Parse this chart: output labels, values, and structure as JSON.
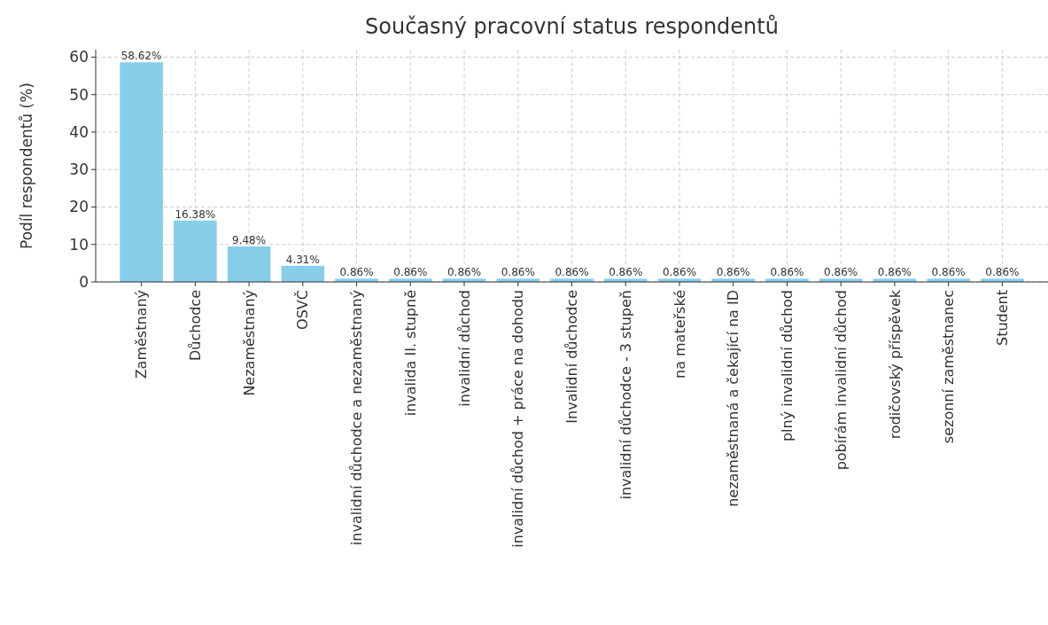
{
  "chart_data": {
    "type": "bar",
    "title": "Současný pracovní status respondentů",
    "ylabel": "Podíl respondentů (%)",
    "categories": [
      "Zaměstnaný",
      "Důchodce",
      "Nezaměstnaný",
      "OSVČ",
      "invalidní důchodce a nezaměstnaný",
      "invalida II. stupně",
      "invalidní důchod",
      "invalidní důchod + práce na dohodu",
      "Invalidní důchodce",
      "invalidní důchodce - 3 stupeň",
      "na mateřské",
      "nezaměstnaná a čekající na ID",
      "plný invalidní důchod",
      "pobírám invalidní důchod",
      "rodičovský příspěvek",
      "sezonní zaměstnanec",
      "Student"
    ],
    "values": [
      58.62,
      16.38,
      9.48,
      4.31,
      0.86,
      0.86,
      0.86,
      0.86,
      0.86,
      0.86,
      0.86,
      0.86,
      0.86,
      0.86,
      0.86,
      0.86,
      0.86
    ],
    "value_labels": [
      "58.62%",
      "16.38%",
      "9.48%",
      "4.31%",
      "0.86%",
      "0.86%",
      "0.86%",
      "0.86%",
      "0.86%",
      "0.86%",
      "0.86%",
      "0.86%",
      "0.86%",
      "0.86%",
      "0.86%",
      "0.86%",
      "0.86%"
    ],
    "color": "#87ceeb",
    "ylim": [
      0,
      62
    ],
    "yticks": [
      0,
      10,
      20,
      30,
      40,
      50,
      60
    ],
    "grid": true
  }
}
